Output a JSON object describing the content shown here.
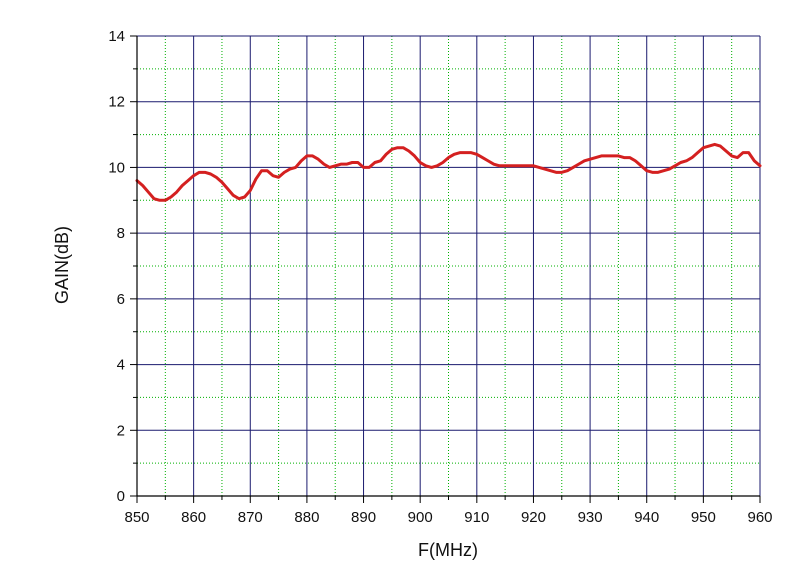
{
  "chart_data": {
    "type": "line",
    "title": "",
    "xlabel": "F(MHz)",
    "ylabel": "GAIN(dB)",
    "xlim": [
      850,
      960
    ],
    "ylim": [
      0,
      14
    ],
    "x_ticks": [
      850,
      860,
      870,
      880,
      890,
      900,
      910,
      920,
      930,
      940,
      950,
      960
    ],
    "y_ticks": [
      0,
      2,
      4,
      6,
      8,
      10,
      12,
      14
    ],
    "grid": true,
    "legend": "none",
    "colors": {
      "series": "#d42020",
      "major_grid": "#1a1a6e",
      "minor_grid": "#00b000",
      "axis": "#000000"
    },
    "series": [
      {
        "x": [
          850,
          851,
          852,
          853,
          854,
          855,
          856,
          857,
          858,
          859,
          860,
          861,
          862,
          863,
          864,
          865,
          866,
          867,
          868,
          869,
          870,
          871,
          872,
          873,
          874,
          875,
          876,
          877,
          878,
          879,
          880,
          881,
          882,
          883,
          884,
          885,
          886,
          887,
          888,
          889,
          890,
          891,
          892,
          893,
          894,
          895,
          896,
          897,
          898,
          899,
          900,
          901,
          902,
          903,
          904,
          905,
          906,
          907,
          908,
          909,
          910,
          911,
          912,
          913,
          914,
          915,
          916,
          917,
          918,
          919,
          920,
          921,
          922,
          923,
          924,
          925,
          926,
          927,
          928,
          929,
          930,
          931,
          932,
          933,
          934,
          935,
          936,
          937,
          938,
          939,
          940,
          941,
          942,
          943,
          944,
          945,
          946,
          947,
          948,
          949,
          950,
          951,
          952,
          953,
          954,
          955,
          956,
          957,
          958,
          959,
          960
        ],
        "y": [
          9.6,
          9.45,
          9.25,
          9.05,
          9.0,
          9.0,
          9.1,
          9.25,
          9.45,
          9.6,
          9.75,
          9.85,
          9.85,
          9.8,
          9.7,
          9.55,
          9.35,
          9.15,
          9.05,
          9.1,
          9.3,
          9.65,
          9.9,
          9.9,
          9.75,
          9.7,
          9.85,
          9.95,
          10.0,
          10.2,
          10.35,
          10.35,
          10.25,
          10.1,
          10.0,
          10.05,
          10.1,
          10.1,
          10.15,
          10.15,
          10.0,
          10.0,
          10.15,
          10.2,
          10.4,
          10.55,
          10.6,
          10.6,
          10.5,
          10.35,
          10.15,
          10.05,
          10.0,
          10.05,
          10.15,
          10.3,
          10.4,
          10.45,
          10.45,
          10.45,
          10.4,
          10.3,
          10.2,
          10.1,
          10.05,
          10.05,
          10.05,
          10.05,
          10.05,
          10.05,
          10.05,
          10.0,
          9.95,
          9.9,
          9.85,
          9.85,
          9.9,
          10.0,
          10.1,
          10.2,
          10.25,
          10.3,
          10.35,
          10.35,
          10.35,
          10.35,
          10.3,
          10.3,
          10.2,
          10.05,
          9.9,
          9.85,
          9.85,
          9.9,
          9.95,
          10.05,
          10.15,
          10.2,
          10.3,
          10.45,
          10.6,
          10.65,
          10.7,
          10.65,
          10.5,
          10.35,
          10.3,
          10.45,
          10.45,
          10.2,
          10.05
        ]
      }
    ]
  }
}
